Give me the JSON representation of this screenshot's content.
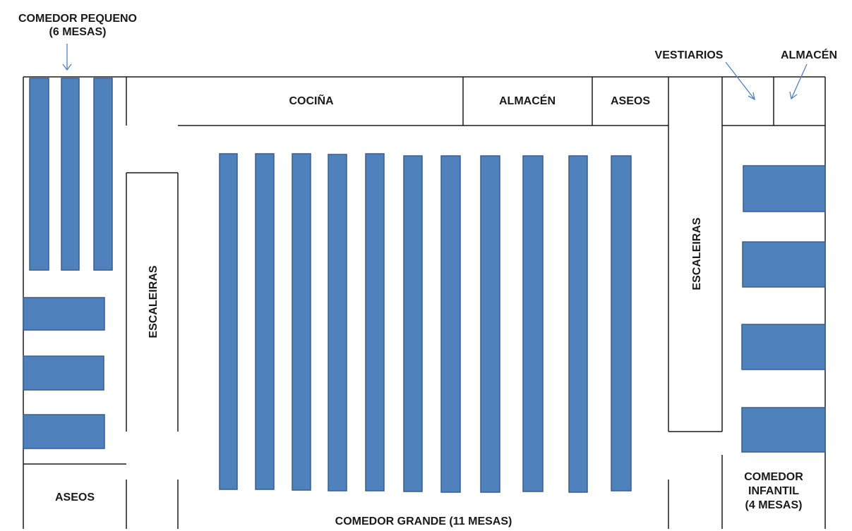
{
  "labels": {
    "comedor_pequeno_line1": "COMEDOR PEQUENO",
    "comedor_pequeno_line2": "(6 MESAS)",
    "vestiarios": "VESTIARIOS",
    "almacen_top": "ALMACÉN",
    "cocina": "COCIÑA",
    "almacen": "ALMACÉN",
    "aseos_top": "ASEOS",
    "escaleiras_left": "ESCALEIRAS",
    "escaleiras_right": "ESCALEIRAS",
    "aseos_bottom": "ASEOS",
    "comedor_grande": "COMEDOR GRANDE (11 MESAS)",
    "comedor_infantil_line1": "COMEDOR",
    "comedor_infantil_line2": "INFANTIL",
    "comedor_infantil_line3": "(4 MESAS)"
  },
  "colors": {
    "table_fill": "#4f81bd",
    "table_stroke": "#385d8a",
    "arrow": "#4f81bd",
    "wall": "#1a1a1a"
  }
}
